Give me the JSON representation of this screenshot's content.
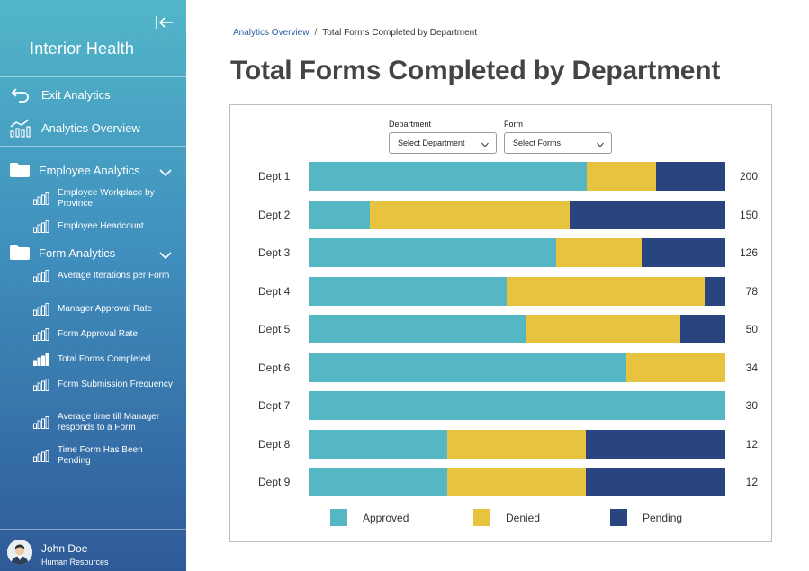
{
  "sidebar": {
    "brand": "Interior Health",
    "top_links": [
      {
        "label": "Exit Analytics",
        "icon": "undo-arrow-icon"
      },
      {
        "label": "Analytics Overview",
        "icon": "analytics-chart-icon"
      }
    ],
    "sections": [
      {
        "label": "Employee Analytics",
        "items": [
          "Employee Workplace by Province",
          "Employee Headcount"
        ]
      },
      {
        "label": "Form Analytics",
        "items": [
          "Average Iterations per Form",
          "Manager Approval Rate",
          "Form Approval Rate",
          "Total Forms Completed",
          "Form Submission Frequency",
          "Average time till Manager responds to a Form",
          "Time Form Has Been Pending"
        ],
        "active": "Total Forms Completed"
      }
    ],
    "user": {
      "name": "John Doe",
      "department": "Human Resources"
    }
  },
  "breadcrumb": {
    "parent": "Analytics Overview",
    "separator": "/",
    "current": "Total Forms Completed by Department"
  },
  "page_title": "Total Forms Completed by Department",
  "filters": {
    "department": {
      "label": "Department",
      "value": "Select Department"
    },
    "form": {
      "label": "Form",
      "value": "Select Forms"
    }
  },
  "colors": {
    "approved": "#55b7c4",
    "denied": "#e7c33f",
    "pending": "#284580"
  },
  "chart_data": {
    "type": "bar",
    "orientation": "horizontal",
    "stacked": true,
    "normalized": true,
    "categories": [
      "Dept 1",
      "Dept 2",
      "Dept 3",
      "Dept 4",
      "Dept 5",
      "Dept 6",
      "Dept 7",
      "Dept 8",
      "Dept 9"
    ],
    "totals": [
      200,
      150,
      126,
      78,
      50,
      34,
      30,
      12,
      12
    ],
    "series": [
      {
        "name": "Approved",
        "values": [
          0.667,
          0.147,
          0.595,
          0.475,
          0.52,
          0.763,
          1.0,
          0.333,
          0.333
        ]
      },
      {
        "name": "Denied",
        "values": [
          0.167,
          0.48,
          0.205,
          0.475,
          0.373,
          0.237,
          0.0,
          0.333,
          0.333
        ]
      },
      {
        "name": "Pending",
        "values": [
          0.166,
          0.373,
          0.2,
          0.05,
          0.107,
          0.0,
          0.0,
          0.334,
          0.334
        ]
      }
    ],
    "legend_position": "bottom",
    "grid": false
  }
}
